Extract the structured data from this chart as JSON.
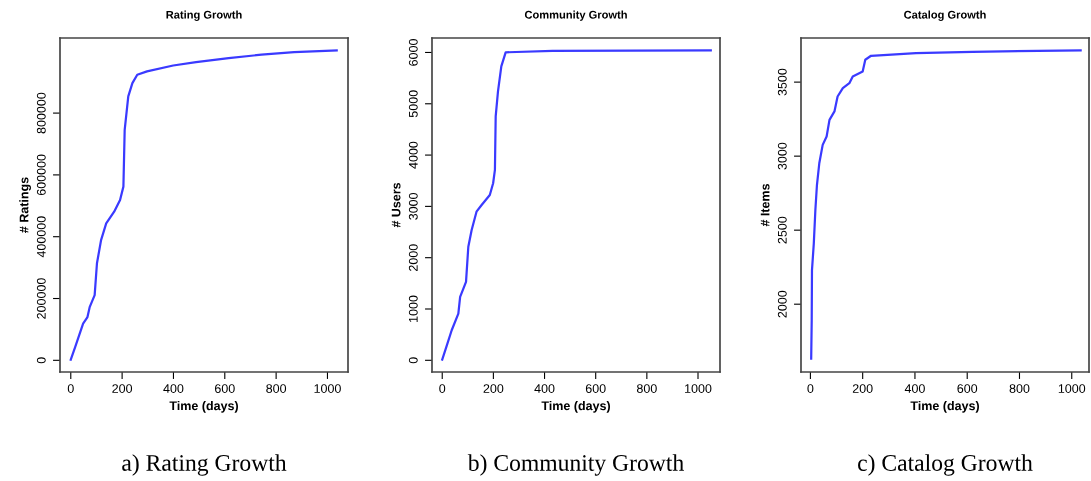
{
  "chart_data": [
    {
      "type": "line",
      "title": "Rating Growth",
      "xlabel": "Time (days)",
      "ylabel": "# Ratings",
      "annotations": [
        "a) Rating Growth"
      ],
      "grid": false,
      "xlim": [
        -42,
        1080
      ],
      "ylim": [
        -37800,
        1043000
      ],
      "xticks": [
        0,
        200,
        400,
        600,
        800,
        1000
      ],
      "yticks": [
        0,
        200000,
        400000,
        600000,
        800000
      ],
      "series": [
        {
          "color": "#3a3aff",
          "x": [
            0,
            17,
            48,
            65,
            74,
            93,
            102,
            118,
            138,
            169,
            192,
            205,
            210,
            224,
            240,
            259,
            297,
            399,
            488,
            615,
            743,
            870,
            1036
          ],
          "values": [
            2000,
            43000,
            119000,
            140000,
            173000,
            211000,
            314000,
            389000,
            443000,
            481000,
            519000,
            562000,
            746000,
            854000,
            897000,
            924000,
            935000,
            954000,
            965000,
            978000,
            989000,
            997000,
            1003000
          ]
        }
      ]
    },
    {
      "type": "line",
      "title": "Community Growth",
      "xlabel": "Time (days)",
      "ylabel": "# Users",
      "annotations": [
        "b) Community Growth"
      ],
      "grid": false,
      "xlim": [
        -40,
        1086
      ],
      "ylim": [
        -228,
        6282
      ],
      "xticks": [
        0,
        200,
        400,
        600,
        800,
        1000
      ],
      "yticks": [
        0,
        1000,
        2000,
        3000,
        4000,
        5000,
        6000
      ],
      "series": [
        {
          "color": "#3a3aff",
          "x": [
            0,
            18,
            37,
            63,
            70,
            93,
            102,
            115,
            134,
            154,
            186,
            199,
            206,
            209,
            218,
            231,
            248,
            431,
            1050
          ],
          "values": [
            13,
            290,
            586,
            911,
            1237,
            1530,
            2214,
            2539,
            2897,
            3027,
            3223,
            3451,
            3711,
            4753,
            5241,
            5729,
            6003,
            6029,
            6040
          ]
        }
      ]
    },
    {
      "type": "line",
      "title": "Catalog Growth",
      "xlabel": "Time (days)",
      "ylabel": "# Items",
      "annotations": [
        "c) Catalog Growth"
      ],
      "grid": false,
      "xlim": [
        -36,
        1066
      ],
      "ylim": [
        1542,
        3798
      ],
      "xticks": [
        0,
        200,
        400,
        600,
        800,
        1000
      ],
      "yticks": [
        2000,
        2500,
        3000,
        3500
      ],
      "series": [
        {
          "color": "#3a3aff",
          "x": [
            3,
            5,
            6,
            13,
            19,
            25,
            34,
            47,
            62,
            73,
            92,
            104,
            124,
            149,
            162,
            200,
            210,
            232,
            404,
            620,
            1034
          ],
          "values": [
            1632,
            1892,
            2230,
            2411,
            2636,
            2805,
            2952,
            3076,
            3133,
            3245,
            3302,
            3403,
            3459,
            3493,
            3538,
            3572,
            3651,
            3678,
            3696,
            3705,
            3714
          ]
        }
      ]
    }
  ]
}
